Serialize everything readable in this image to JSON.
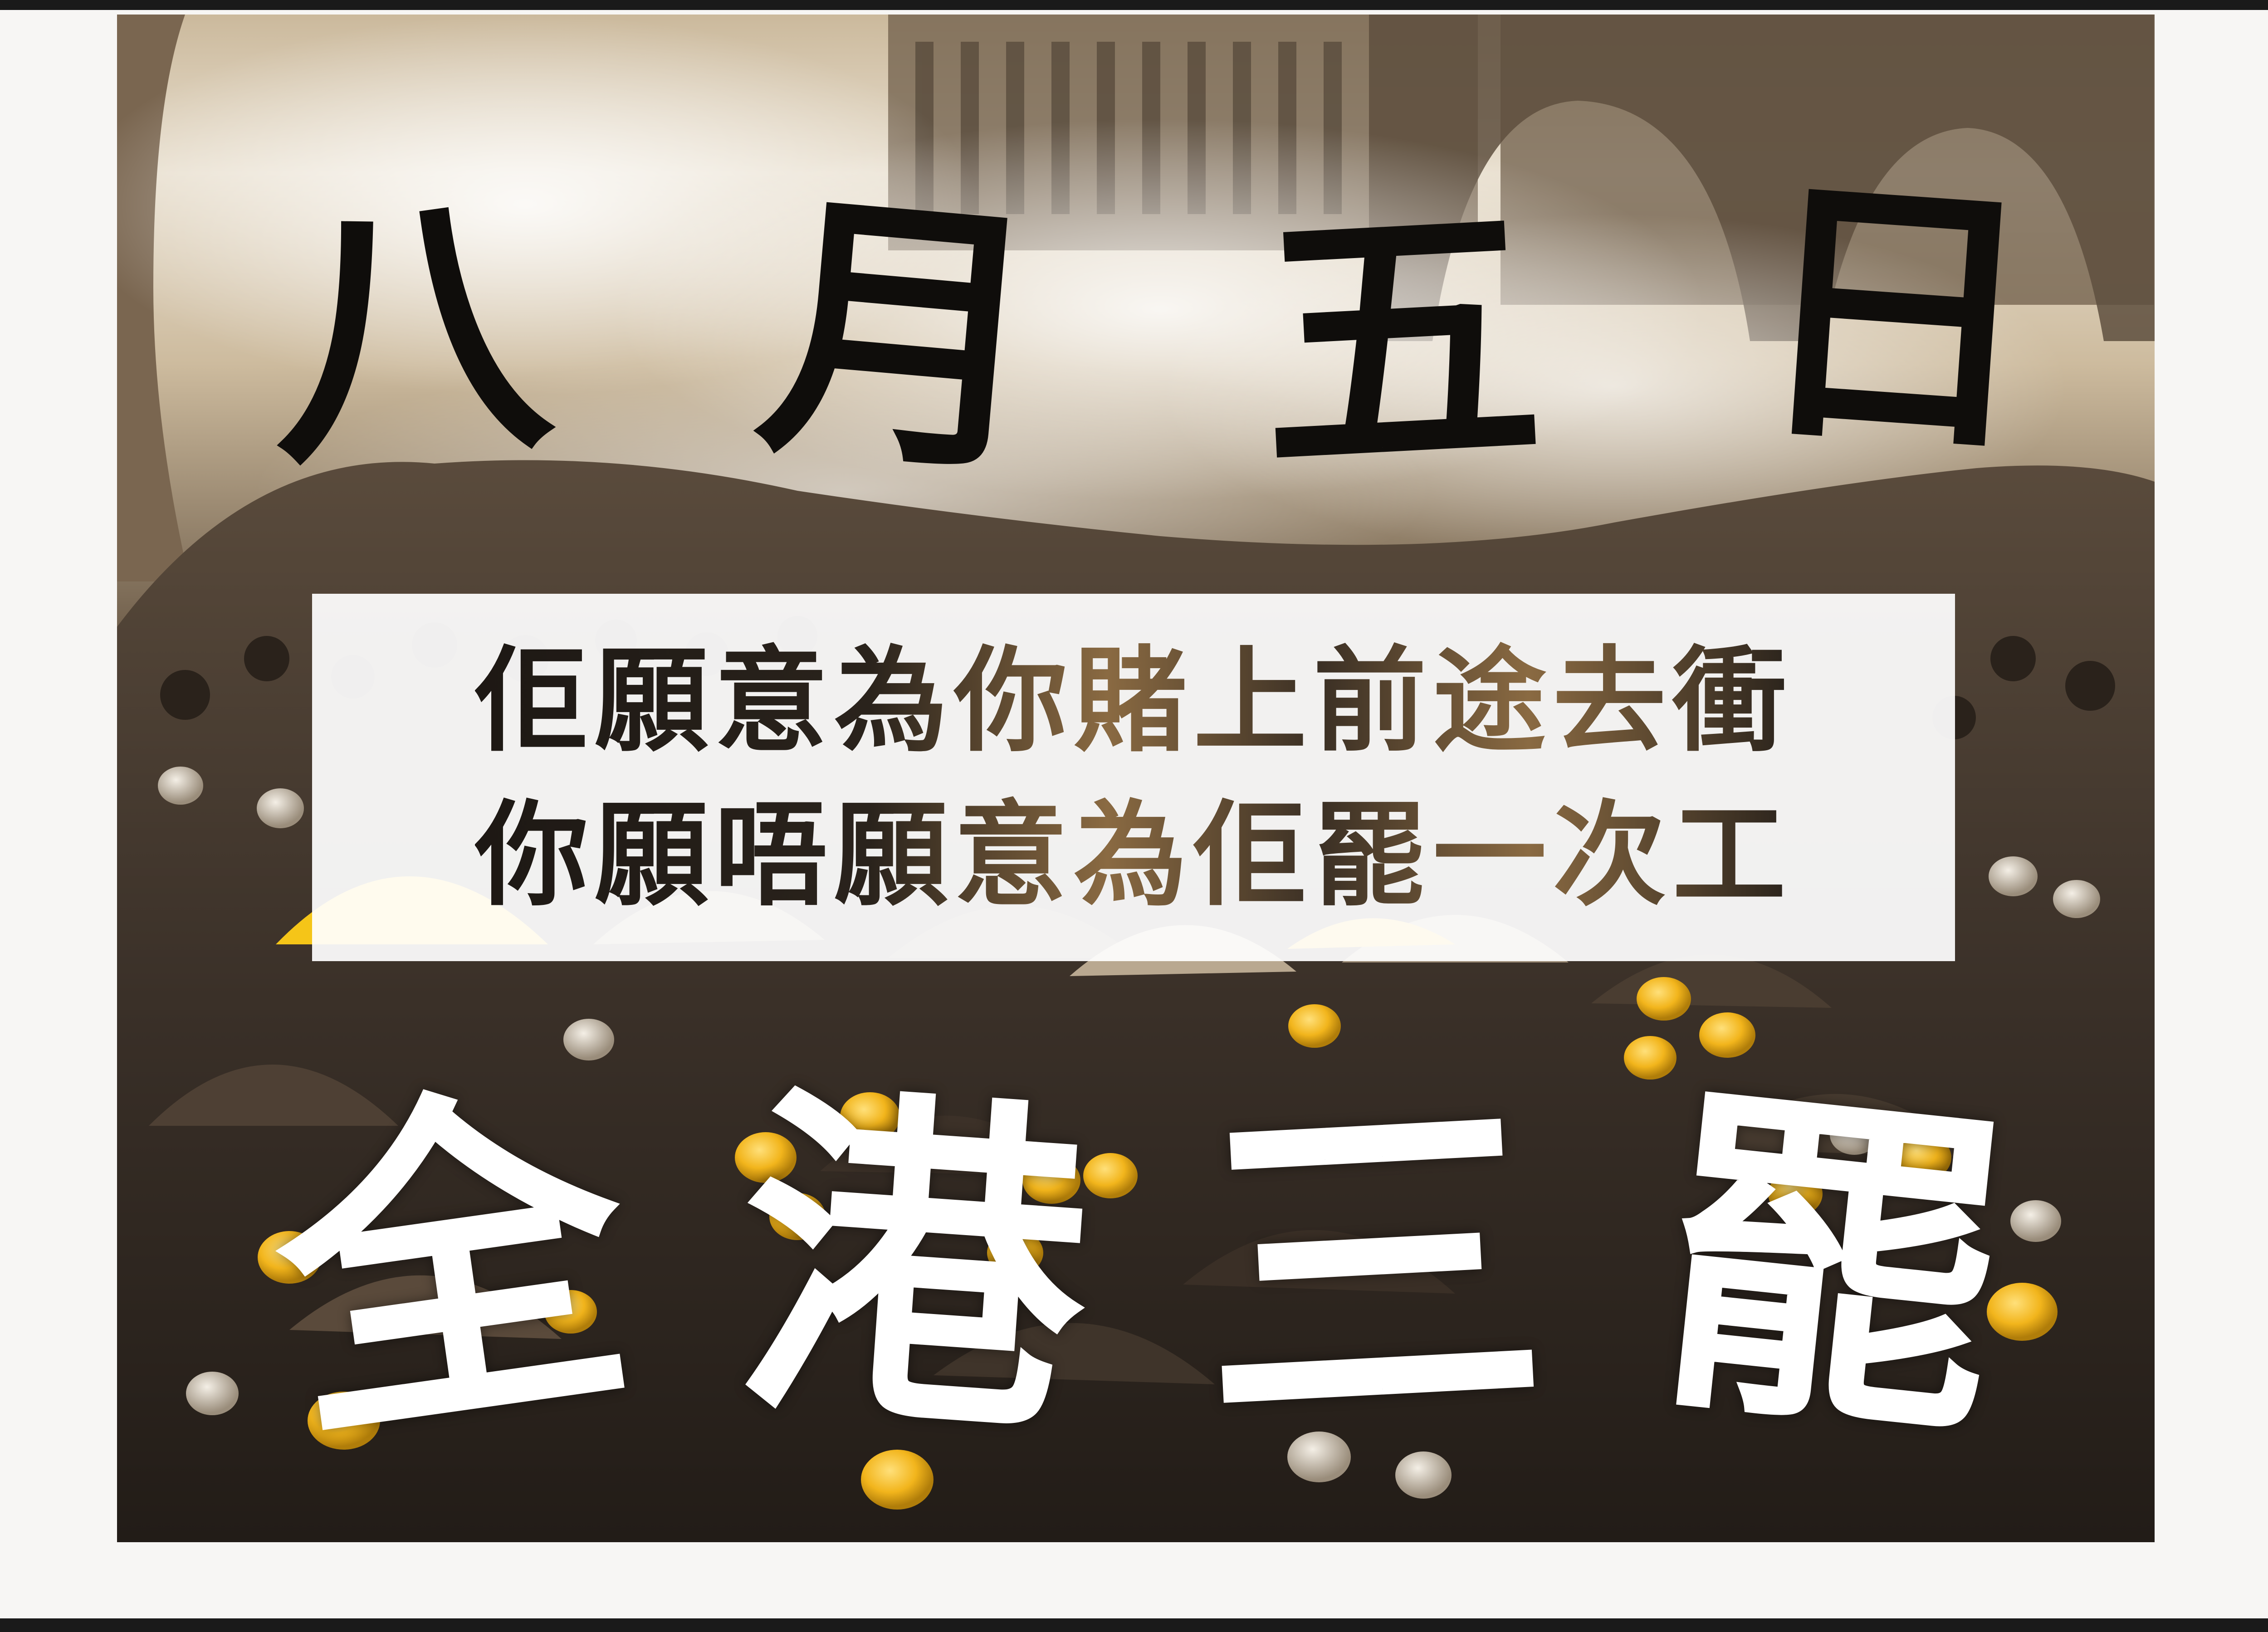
{
  "poster": {
    "date_chars": [
      "八",
      "月",
      "五",
      "日"
    ],
    "slogan_lines": [
      "佢願意為你賭上前途去衝",
      "你願唔願意為佢罷一次工"
    ],
    "strike_chars": [
      "全",
      "港",
      "三",
      "罷"
    ]
  },
  "colors": {
    "sepia_sky": "#d8c9b0",
    "sepia_dark": "#3b3128",
    "helmet_yellow": "#f2b51c",
    "umbrella_yellow": "#f5c518",
    "slogan_accent": "#8a6a42"
  }
}
